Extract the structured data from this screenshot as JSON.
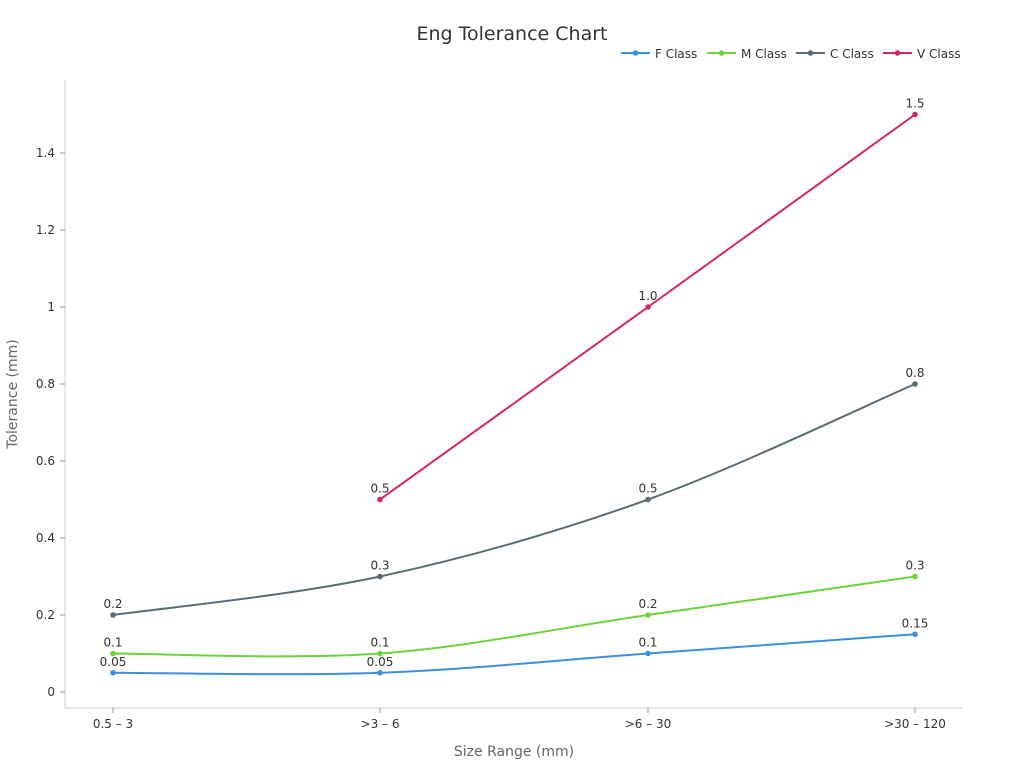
{
  "chart_data": {
    "type": "line",
    "title": "Eng Tolerance Chart",
    "xlabel": "Size Range (mm)",
    "ylabel": "Tolerance (mm)",
    "categories": [
      "0.5 – 3",
      ">3 – 6",
      ">6 – 30",
      ">30 – 120"
    ],
    "ylim": [
      -0.04,
      1.58
    ],
    "yticks": [
      0,
      0.2,
      0.4,
      0.6,
      0.8,
      1,
      1.2,
      1.4
    ],
    "ytick_labels": [
      "0",
      "0.2",
      "0.4",
      "0.6",
      "0.8",
      "1",
      "1.2",
      "1.4"
    ],
    "grid": false,
    "legend": "top-right",
    "series": [
      {
        "name": "F Class",
        "color": "#3b8fe0",
        "values": [
          0.05,
          0.05,
          0.1,
          0.15
        ],
        "labels": [
          "0.05",
          "0.05",
          "0.1",
          "0.15"
        ]
      },
      {
        "name": "M Class",
        "color": "#6dd33a",
        "values": [
          0.1,
          0.1,
          0.2,
          0.3
        ],
        "labels": [
          "0.1",
          "0.1",
          "0.2",
          "0.3"
        ]
      },
      {
        "name": "C Class",
        "color": "#566d78",
        "values": [
          0.2,
          0.3,
          0.5,
          0.8
        ],
        "labels": [
          "0.2",
          "0.3",
          "0.5",
          "0.8"
        ]
      },
      {
        "name": "V Class",
        "color": "#d6285e",
        "values": [
          null,
          0.5,
          1.0,
          1.5
        ],
        "labels": [
          "",
          "0.5",
          "1.0",
          "1.5"
        ]
      }
    ]
  }
}
